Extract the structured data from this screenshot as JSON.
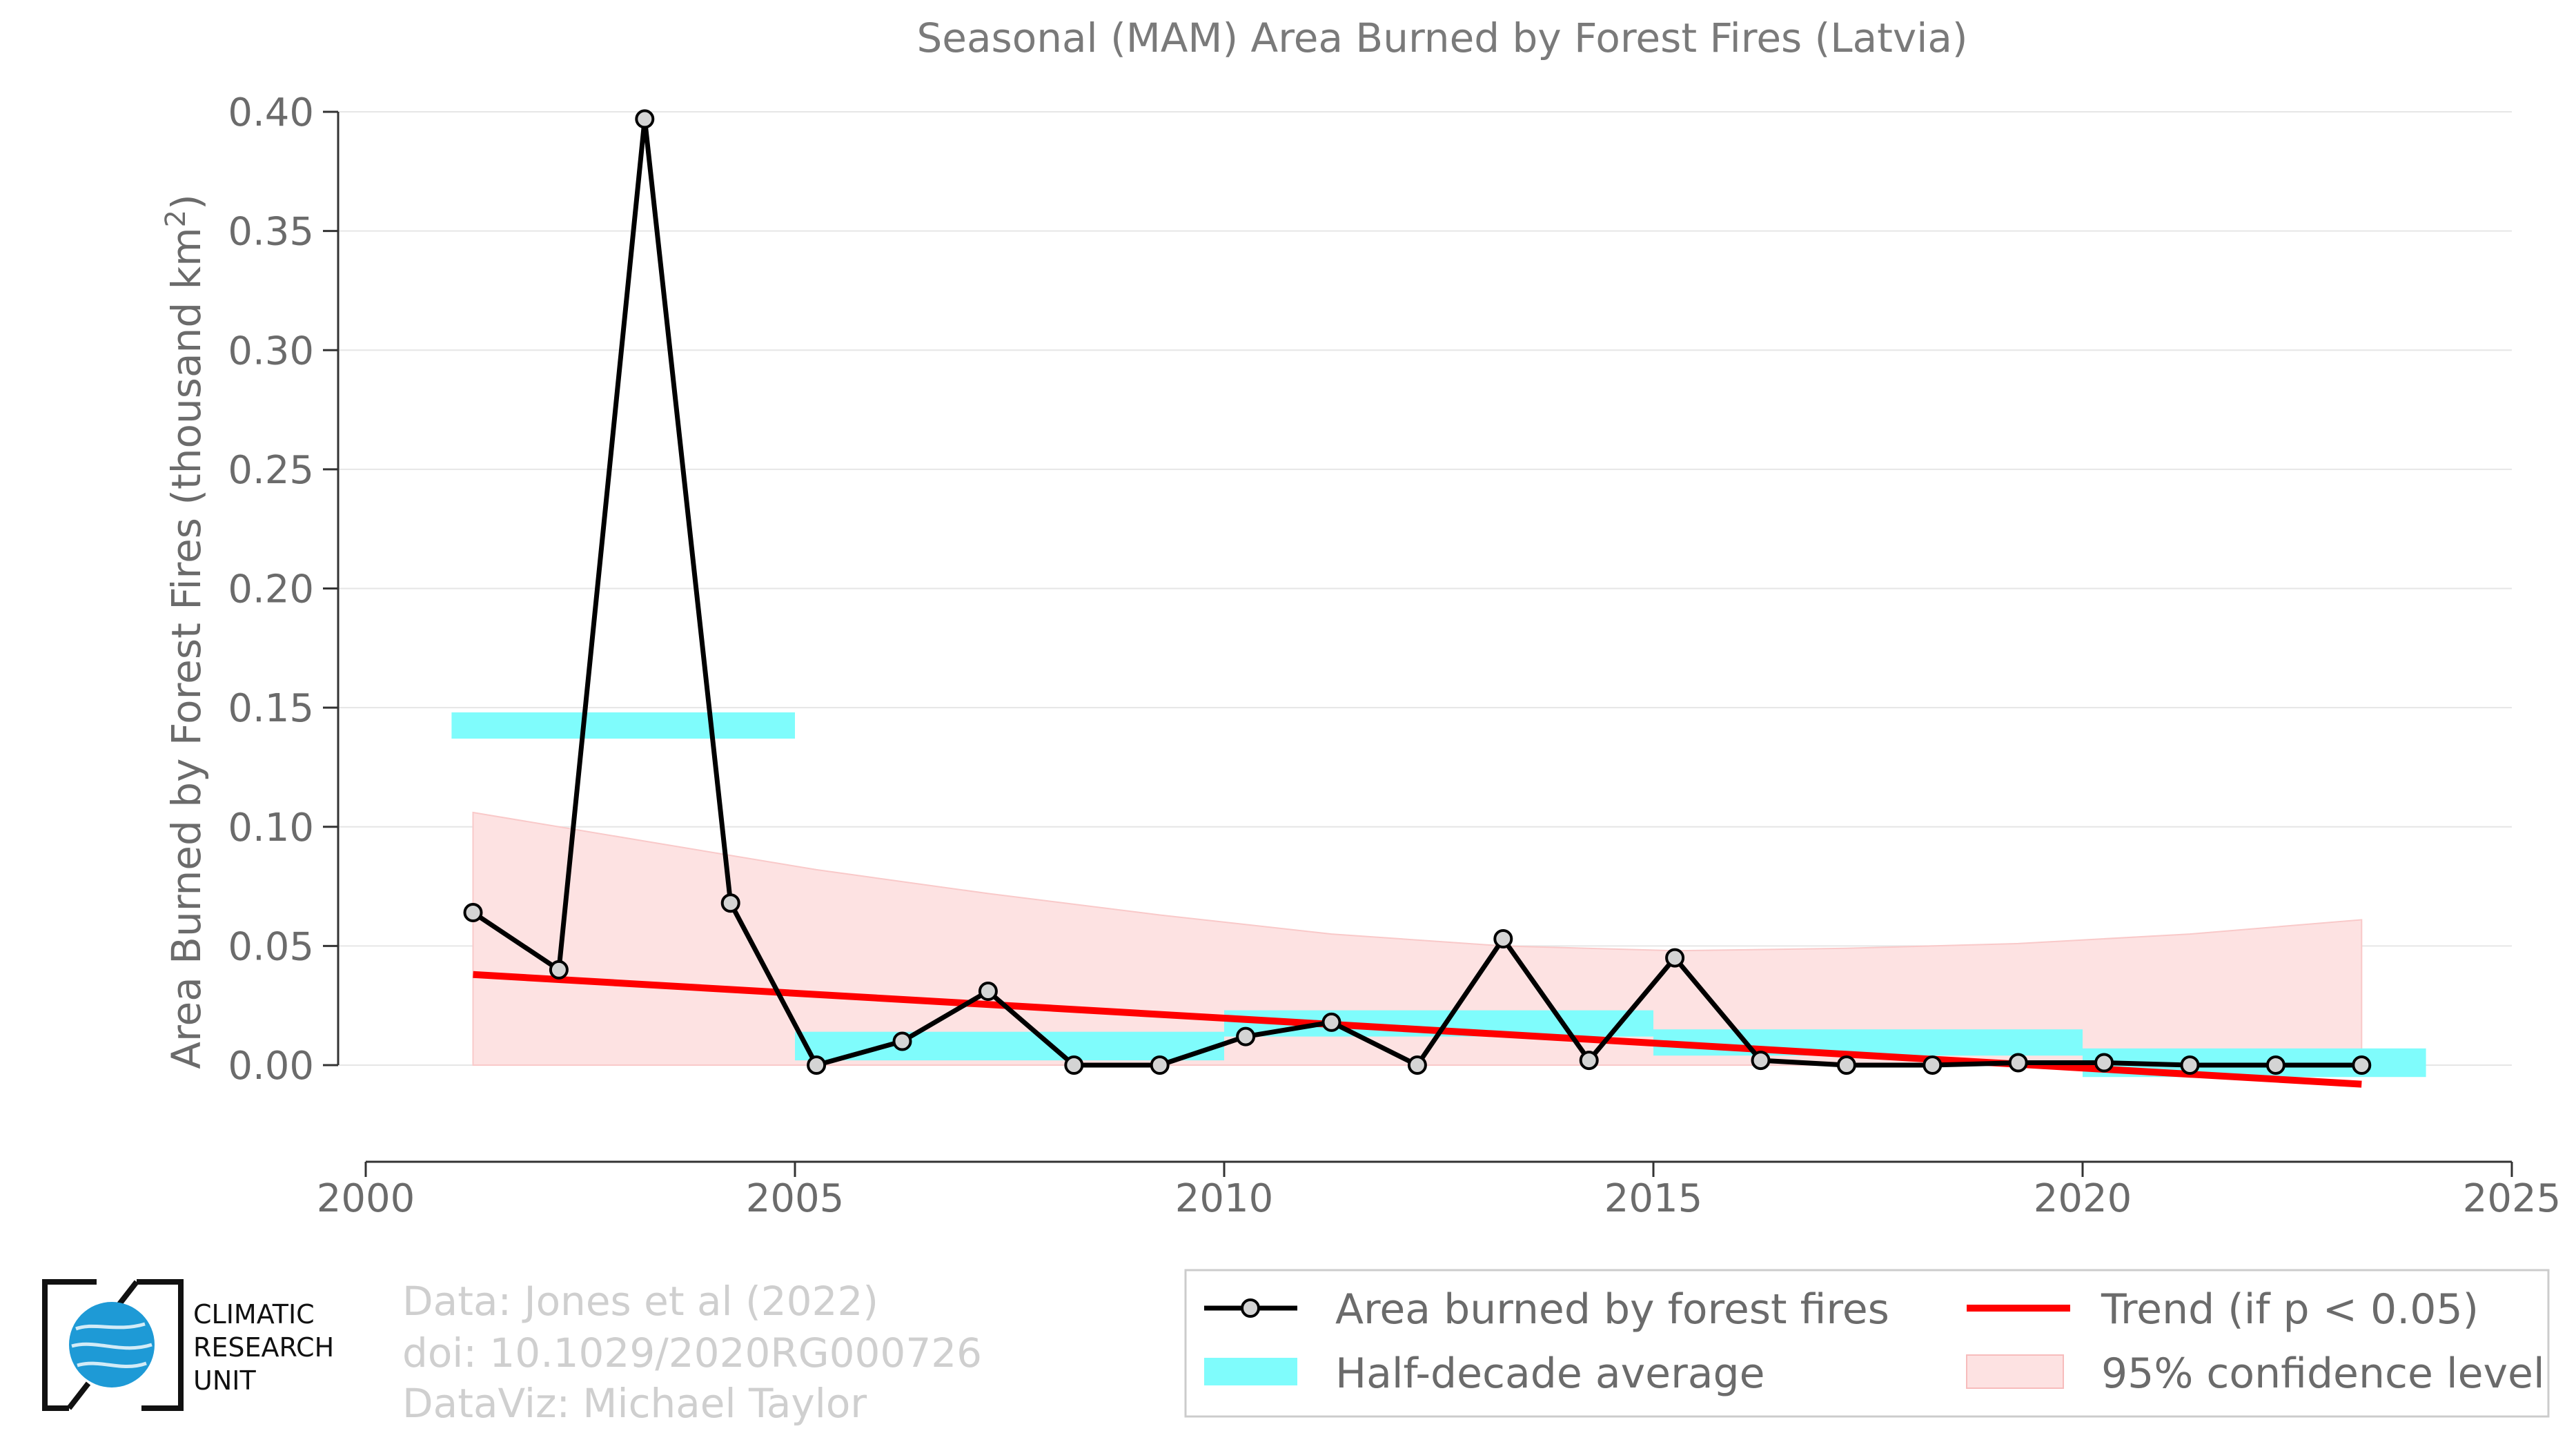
{
  "chart_data": {
    "type": "line",
    "title": "Seasonal (MAM) Area Burned by Forest Fires (Latvia)",
    "xlabel": "",
    "ylabel": "Area Burned by Forest Fires (thousand km",
    "ylabel_superscript": "2",
    "ylabel_close": ")",
    "xlim": [
      2000,
      2025
    ],
    "ylim": [
      -0.04,
      0.4
    ],
    "x_ticks": [
      2000,
      2005,
      2010,
      2015,
      2020,
      2025
    ],
    "x_tick_labels": [
      "2000",
      "2005",
      "2010",
      "2015",
      "2020",
      "2025"
    ],
    "y_ticks": [
      0.0,
      0.05,
      0.1,
      0.15,
      0.2,
      0.25,
      0.3,
      0.35,
      0.4
    ],
    "y_tick_labels": [
      "0.00",
      "0.05",
      "0.10",
      "0.15",
      "0.20",
      "0.25",
      "0.30",
      "0.35",
      "0.40"
    ],
    "grid": "horizontal",
    "series": [
      {
        "name": "Area burned by forest fires",
        "color": "#000000",
        "x": [
          2001.25,
          2002.25,
          2003.25,
          2004.25,
          2005.25,
          2006.25,
          2007.25,
          2008.25,
          2009.25,
          2010.25,
          2011.25,
          2012.25,
          2013.25,
          2014.25,
          2015.25,
          2016.25,
          2017.25,
          2018.25,
          2019.25,
          2020.25,
          2021.25,
          2022.25,
          2023.25
        ],
        "values": [
          0.064,
          0.04,
          0.397,
          0.068,
          0.0,
          0.01,
          0.031,
          0.0,
          0.0,
          0.012,
          0.018,
          0.0,
          0.053,
          0.002,
          0.045,
          0.002,
          0.0,
          0.0,
          0.001,
          0.001,
          0.0,
          0.0,
          0.0
        ]
      }
    ],
    "half_decade_average": {
      "name": "Half-decade average",
      "color": "#7ffcfc",
      "segments": [
        {
          "x0": 2001.0,
          "x1": 2005.0,
          "y0": 0.137,
          "y1": 0.148
        },
        {
          "x0": 2005.0,
          "x1": 2010.0,
          "y0": 0.002,
          "y1": 0.014
        },
        {
          "x0": 2010.0,
          "x1": 2015.0,
          "y0": 0.012,
          "y1": 0.023
        },
        {
          "x0": 2015.0,
          "x1": 2020.0,
          "y0": 0.004,
          "y1": 0.015
        },
        {
          "x0": 2020.0,
          "x1": 2024.0,
          "y0": -0.005,
          "y1": 0.007
        }
      ]
    },
    "trend": {
      "name": "Trend (if p < 0.05)",
      "color": "#ff0000",
      "x": [
        2001.25,
        2023.25
      ],
      "values": [
        0.038,
        -0.008
      ]
    },
    "confidence": {
      "name": "95% confidence level",
      "color": "#fde2e2",
      "x": [
        2001.25,
        2003.25,
        2005.25,
        2007.25,
        2009.25,
        2011.25,
        2013.25,
        2015.25,
        2017.25,
        2019.25,
        2021.25,
        2023.25
      ],
      "upper": [
        0.106,
        0.094,
        0.082,
        0.072,
        0.063,
        0.055,
        0.05,
        0.048,
        0.049,
        0.051,
        0.055,
        0.061
      ],
      "lower": [
        0.0,
        0.0,
        0.0,
        0.0,
        0.0,
        0.0,
        0.0,
        0.0,
        0.0,
        0.0,
        0.0,
        0.0
      ]
    },
    "legend_position": "bottom-right"
  },
  "legend": {
    "series_label": "Area burned by forest fires",
    "trend_label": "Trend (if p < 0.05)",
    "average_label": "Half-decade average",
    "confidence_label": "95% confidence level"
  },
  "credits": {
    "line1": "Data: Jones et al (2022)",
    "line2": "doi: 10.1029/2020RG000726",
    "line3": "DataViz: Michael Taylor"
  },
  "logo": {
    "line1": "CLIMATIC",
    "line2": "RESEARCH",
    "line3": "UNIT"
  },
  "colors": {
    "line": "#000000",
    "marker_fill": "#d4d4d4",
    "average": "#7ffcfc",
    "trend": "#ff0000",
    "confidence": "#fde2e2",
    "grid": "#e6e6e6"
  }
}
